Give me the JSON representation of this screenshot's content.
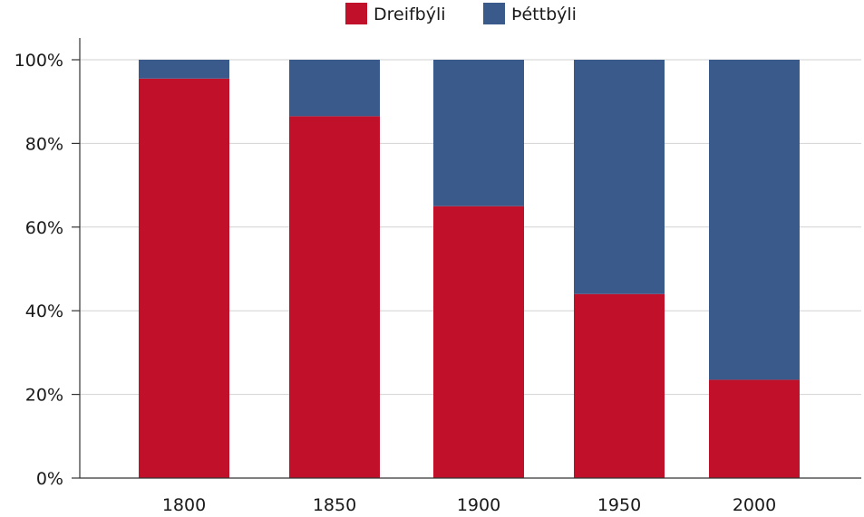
{
  "chart_data": {
    "type": "bar",
    "stacked": true,
    "categories": [
      "1800",
      "1850",
      "1900",
      "1950",
      "2000"
    ],
    "series": [
      {
        "name": "Dreifbýli",
        "color": "#c0102a",
        "values": [
          95.5,
          86.5,
          65,
          44,
          23.5
        ]
      },
      {
        "name": "Þéttbýli",
        "color": "#3a5a8c",
        "values": [
          4.5,
          13.5,
          35,
          56,
          76.5
        ]
      }
    ],
    "y_ticks": [
      "0%",
      "20%",
      "40%",
      "60%",
      "80%",
      "100%"
    ],
    "ylim": [
      0,
      100
    ],
    "grid": true,
    "legend_position": "top-center"
  }
}
